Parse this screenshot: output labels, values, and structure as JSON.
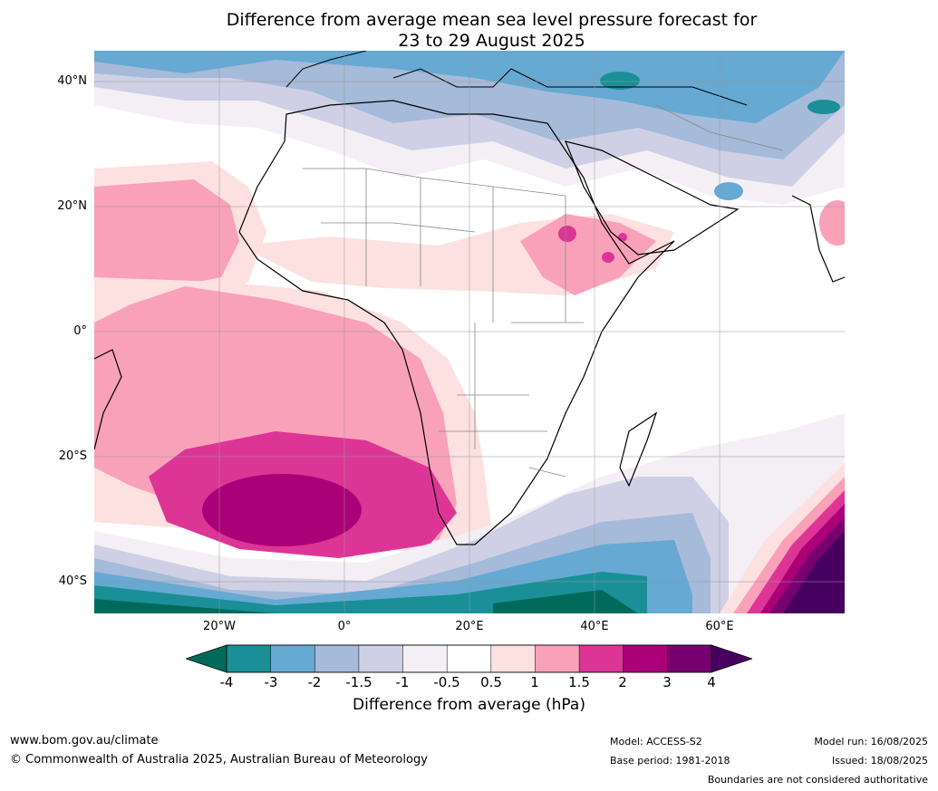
{
  "title": {
    "line1": "Difference from average mean sea level pressure forecast for",
    "line2": "23 to 29 August 2025"
  },
  "axes": {
    "lat_labels": [
      "40°N",
      "20°N",
      "0°",
      "20°S",
      "40°S"
    ],
    "lon_labels": [
      "20°W",
      "0°",
      "20°E",
      "40°E",
      "60°E"
    ],
    "lat_range": [
      -45,
      45
    ],
    "lon_range": [
      -40,
      80
    ],
    "gridlines": true
  },
  "colorbar": {
    "ticks": [
      "-4",
      "-3",
      "-2",
      "-1.5",
      "-1",
      "-0.5",
      "0.5",
      "1",
      "1.5",
      "2",
      "3",
      "4"
    ],
    "colors": [
      "#1a8f98",
      "#66a9d2",
      "#a6bad9",
      "#cfd0e5",
      "#f3eff5",
      "#ffffff",
      "#fde0e0",
      "#f9a1b9",
      "#dd3596",
      "#ac0079",
      "#770070"
    ],
    "under_color": "#006a5a",
    "over_color": "#47005f",
    "label": "Difference from average (hPa)"
  },
  "footer": {
    "website": "www.bom.gov.au/climate",
    "copyright": "© Commonwealth of Australia 2025, Australian Bureau of Meteorology",
    "model": "Model: ACCESS-S2",
    "base_period": "Base period: 1981-2018",
    "model_run": "Model run: 16/08/2025",
    "issued": "Issued: 18/08/2025",
    "disclaimer": "Boundaries are not considered authoritative"
  }
}
